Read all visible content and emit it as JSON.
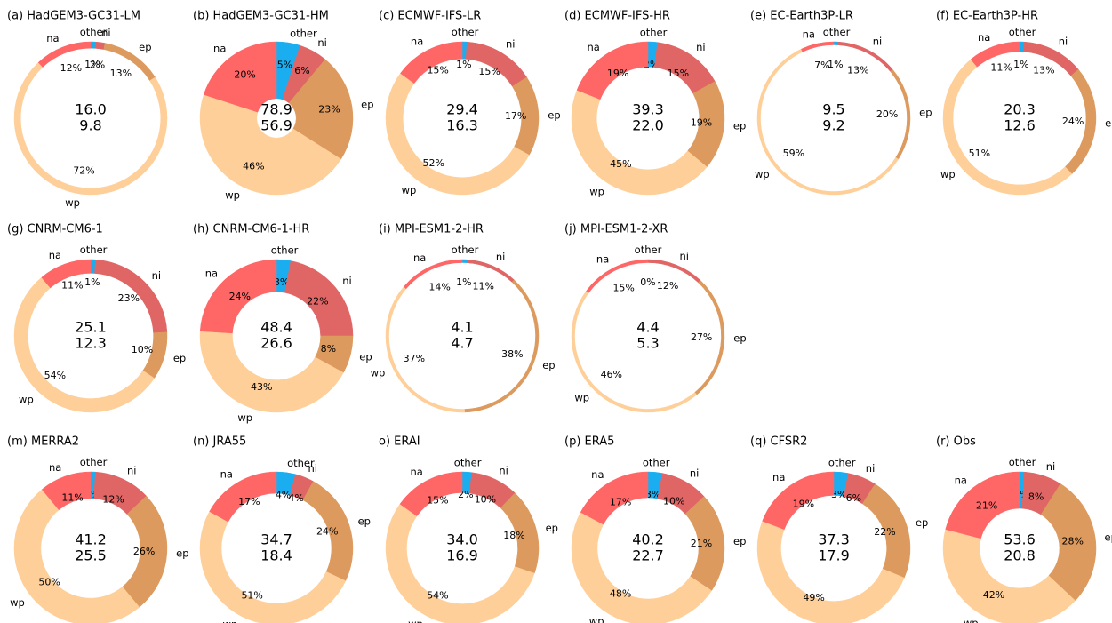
{
  "chart_data": [
    {
      "type": "donut",
      "title": "(a) HadGEM3-GC31-LM",
      "categories": [
        "other",
        "ni",
        "ep",
        "wp",
        "na"
      ],
      "colors": [
        "#1aaef0",
        "#e06666",
        "#dd9a5e",
        "#ffcf99",
        "#ff6666"
      ],
      "values": [
        1,
        2,
        13,
        72,
        12
      ],
      "value_labels": [
        "1%",
        "2%",
        "13%",
        "72%",
        "12%"
      ],
      "totals": [
        {
          "value": 16,
          "label": "16.0"
        },
        9.8
      ]
    },
    {
      "type": "donut",
      "title": "(b) HadGEM3-GC31-HM",
      "categories": [
        "other",
        "ni",
        "ep",
        "wp",
        "na"
      ],
      "colors": [
        "#1aaef0",
        "#e06666",
        "#dd9a5e",
        "#ffcf99",
        "#ff6666"
      ],
      "values": [
        5,
        6,
        23,
        46,
        20
      ],
      "value_labels": [
        "5%",
        "6%",
        "23%",
        "46%",
        "20%"
      ],
      "totals": [
        78.9,
        56.9
      ]
    },
    {
      "type": "donut",
      "title": "(c) ECMWF-IFS-LR",
      "categories": [
        "other",
        "ni",
        "ep",
        "wp",
        "na"
      ],
      "colors": [
        "#1aaef0",
        "#e06666",
        "#dd9a5e",
        "#ffcf99",
        "#ff6666"
      ],
      "values": [
        1,
        15,
        17,
        52,
        15
      ],
      "value_labels": [
        "1%",
        "15%",
        "17%",
        "52%",
        "15%"
      ],
      "totals": [
        29.4,
        16.3
      ]
    },
    {
      "type": "donut",
      "title": "(d) ECMWF-IFS-HR",
      "categories": [
        "other",
        "ni",
        "ep",
        "wp",
        "na"
      ],
      "colors": [
        "#1aaef0",
        "#e06666",
        "#dd9a5e",
        "#ffcf99",
        "#ff6666"
      ],
      "values": [
        2,
        15,
        19,
        45,
        19
      ],
      "value_labels": [
        "2%",
        "15%",
        "19%",
        "45%",
        "19%"
      ],
      "totals": [
        39.3,
        {
          "value": 22,
          "label": "22.0"
        }
      ]
    },
    {
      "type": "donut",
      "title": "(e) EC-Earth3P-LR",
      "categories": [
        "other",
        "ni",
        "ep",
        "wp",
        "na"
      ],
      "colors": [
        "#1aaef0",
        "#e06666",
        "#dd9a5e",
        "#ffcf99",
        "#ff6666"
      ],
      "values": [
        1,
        13,
        20,
        59,
        7
      ],
      "value_labels": [
        "1%",
        "13%",
        "20%",
        "59%",
        "7%"
      ],
      "totals": [
        9.5,
        9.2
      ]
    },
    {
      "type": "donut",
      "title": "(f) EC-Earth3P-HR",
      "categories": [
        "other",
        "ni",
        "ep",
        "wp",
        "na"
      ],
      "colors": [
        "#1aaef0",
        "#e06666",
        "#dd9a5e",
        "#ffcf99",
        "#ff6666"
      ],
      "values": [
        1,
        13,
        24,
        51,
        11
      ],
      "value_labels": [
        "1%",
        "13%",
        "24%",
        "51%",
        "11%"
      ],
      "totals": [
        20.3,
        12.6
      ]
    },
    {
      "type": "donut",
      "title": "(g) CNRM-CM6-1",
      "categories": [
        "other",
        "ni",
        "ep",
        "wp",
        "na"
      ],
      "colors": [
        "#1aaef0",
        "#e06666",
        "#dd9a5e",
        "#ffcf99",
        "#ff6666"
      ],
      "values": [
        1,
        23,
        10,
        54,
        11
      ],
      "value_labels": [
        "1%",
        "23%",
        "10%",
        "54%",
        "11%"
      ],
      "totals": [
        25.1,
        12.3
      ]
    },
    {
      "type": "donut",
      "title": "(h) CNRM-CM6-1-HR",
      "categories": [
        "other",
        "ni",
        "ep",
        "wp",
        "na"
      ],
      "colors": [
        "#1aaef0",
        "#e06666",
        "#dd9a5e",
        "#ffcf99",
        "#ff6666"
      ],
      "values": [
        3,
        22,
        8,
        43,
        24
      ],
      "value_labels": [
        "3%",
        "22%",
        "8%",
        "43%",
        "24%"
      ],
      "totals": [
        48.4,
        26.6
      ]
    },
    {
      "type": "donut",
      "title": "(i) MPI-ESM1-2-HR",
      "categories": [
        "other",
        "ni",
        "ep",
        "wp",
        "na"
      ],
      "colors": [
        "#1aaef0",
        "#e06666",
        "#dd9a5e",
        "#ffcf99",
        "#ff6666"
      ],
      "values": [
        1,
        11,
        38,
        37,
        14
      ],
      "value_labels": [
        "1%",
        "11%",
        "38%",
        "37%",
        "14%"
      ],
      "totals": [
        4.1,
        4.7
      ]
    },
    {
      "type": "donut",
      "title": "(j) MPI-ESM1-2-XR",
      "categories": [
        "other",
        "ni",
        "ep",
        "wp",
        "na"
      ],
      "colors": [
        "#1aaef0",
        "#e06666",
        "#dd9a5e",
        "#ffcf99",
        "#ff6666"
      ],
      "values": [
        0,
        12,
        27,
        46,
        15
      ],
      "value_labels": [
        "0%",
        "12%",
        "27%",
        "46%",
        "15%"
      ],
      "totals": [
        4.4,
        5.3
      ]
    },
    {
      "type": "donut",
      "title": "(m) MERRA2",
      "categories": [
        "other",
        "ni",
        "ep",
        "wp",
        "na"
      ],
      "colors": [
        "#1aaef0",
        "#e06666",
        "#dd9a5e",
        "#ffcf99",
        "#ff6666"
      ],
      "values": [
        1,
        12,
        26,
        50,
        11
      ],
      "value_labels": [
        "1%",
        "12%",
        "26%",
        "50%",
        "11%"
      ],
      "totals": [
        41.2,
        25.5
      ]
    },
    {
      "type": "donut",
      "title": "(n) JRA55",
      "categories": [
        "other",
        "ni",
        "ep",
        "wp",
        "na"
      ],
      "colors": [
        "#1aaef0",
        "#e06666",
        "#dd9a5e",
        "#ffcf99",
        "#ff6666"
      ],
      "values": [
        4,
        4,
        24,
        51,
        17
      ],
      "value_labels": [
        "4%",
        "4%",
        "24%",
        "51%",
        "17%"
      ],
      "totals": [
        34.7,
        18.4
      ]
    },
    {
      "type": "donut",
      "title": "o) ERAI",
      "categories": [
        "other",
        "ni",
        "ep",
        "wp",
        "na"
      ],
      "colors": [
        "#1aaef0",
        "#e06666",
        "#dd9a5e",
        "#ffcf99",
        "#ff6666"
      ],
      "values": [
        2,
        10,
        18,
        54,
        15
      ],
      "value_labels": [
        "2%",
        "10%",
        "18%",
        "54%",
        "15%"
      ],
      "totals": [
        {
          "value": 34,
          "label": "34.0"
        },
        16.9
      ]
    },
    {
      "type": "donut",
      "title": "(p) ERA5",
      "categories": [
        "other",
        "ni",
        "ep",
        "wp",
        "na"
      ],
      "colors": [
        "#1aaef0",
        "#e06666",
        "#dd9a5e",
        "#ffcf99",
        "#ff6666"
      ],
      "values": [
        3,
        10,
        21,
        48,
        17
      ],
      "value_labels": [
        "3%",
        "10%",
        "21%",
        "48%",
        "17%"
      ],
      "totals": [
        40.2,
        22.7
      ]
    },
    {
      "type": "donut",
      "title": "(q) CFSR2",
      "categories": [
        "other",
        "ni",
        "ep",
        "wp",
        "na"
      ],
      "colors": [
        "#1aaef0",
        "#e06666",
        "#dd9a5e",
        "#ffcf99",
        "#ff6666"
      ],
      "values": [
        3,
        6,
        22,
        49,
        19
      ],
      "value_labels": [
        "3%",
        "6%",
        "22%",
        "49%",
        "19%"
      ],
      "totals": [
        37.3,
        17.9
      ]
    },
    {
      "type": "donut",
      "title": "(r) Obs",
      "categories": [
        "other",
        "ni",
        "ep",
        "wp",
        "na"
      ],
      "colors": [
        "#1aaef0",
        "#e06666",
        "#dd9a5e",
        "#ffcf99",
        "#ff6666"
      ],
      "values": [
        1,
        8,
        28,
        42,
        21
      ],
      "value_labels": [
        "1%",
        "8%",
        "28%",
        "42%",
        "21%"
      ],
      "totals": [
        53.6,
        20.8
      ]
    }
  ]
}
